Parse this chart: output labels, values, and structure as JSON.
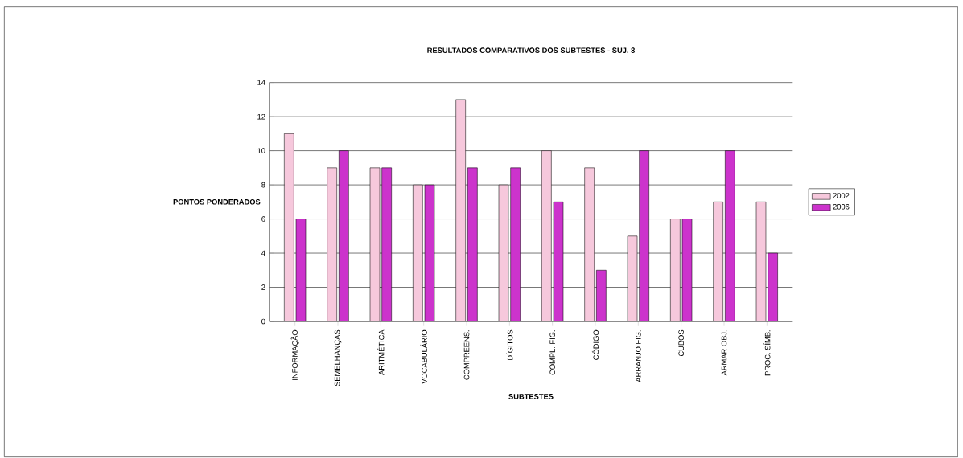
{
  "chart_data": {
    "type": "bar",
    "title": "RESULTADOS COMPARATIVOS DOS SUBTESTES - SUJ. 8",
    "xlabel": "SUBTESTES",
    "ylabel": "PONTOS PONDERADOS",
    "categories": [
      "INFORMAÇÃO",
      "SEMELHANÇAS",
      "ARITMÉTICA",
      "VOCABULÁRIO",
      "COMPREENS.",
      "DÍGITOS",
      "COMPL. FIG.",
      "CÓDIGO",
      "ARRANJO FIG.",
      "CUBOS",
      "ARMAR OBJ.",
      "PROC. SÍMB."
    ],
    "series": [
      {
        "name": "2002",
        "color": "#f6c8dc",
        "values": [
          11,
          9,
          9,
          8,
          13,
          8,
          10,
          9,
          5,
          6,
          7,
          7
        ]
      },
      {
        "name": "2006",
        "color": "#cc33cc",
        "values": [
          6,
          10,
          9,
          8,
          9,
          9,
          7,
          3,
          10,
          6,
          10,
          4
        ]
      }
    ],
    "ylim": [
      0,
      14
    ],
    "yticks": [
      0,
      2,
      4,
      6,
      8,
      10,
      12,
      14
    ],
    "grid": "y",
    "legend": "right"
  }
}
